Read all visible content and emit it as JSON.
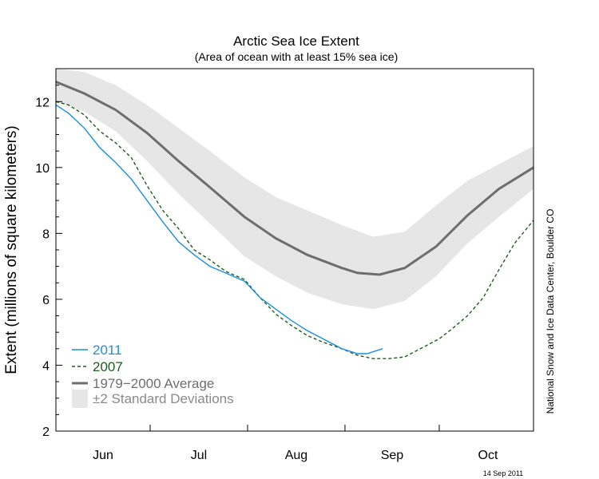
{
  "colors": {
    "series_2011": "#1a8fe0",
    "series_2007": "#1f5a1f",
    "average": "#6e6e6e",
    "std_band": "#e6e6e6",
    "legend_std_text": "#8a8a8a"
  },
  "chart_data": {
    "type": "line",
    "title": "Arctic Sea Ice Extent",
    "subtitle": "(Area of ocean with at least 15% sea ice)",
    "ylabel": "Extent (millions of square kilometers)",
    "xlabel": "",
    "ylim": [
      2,
      13
    ],
    "yticks": [
      2,
      4,
      6,
      8,
      10,
      12
    ],
    "xlim": [
      "Jun 1",
      "Oct 31"
    ],
    "x_month_labels": [
      "Jun",
      "Jul",
      "Aug",
      "Sep",
      "Oct"
    ],
    "x_month_boundaries": [
      "Jul 1",
      "Aug 1",
      "Sep 1",
      "Oct 1"
    ],
    "grid": false,
    "legend_position": "bottom-left",
    "series": [
      {
        "name": "2011",
        "style": "solid",
        "points": [
          [
            "Jun 1",
            11.9
          ],
          [
            "Jun 5",
            11.65
          ],
          [
            "Jun 10",
            11.2
          ],
          [
            "Jun 15",
            10.6
          ],
          [
            "Jun 20",
            10.15
          ],
          [
            "Jun 25",
            9.65
          ],
          [
            "Jun 30",
            9.0
          ],
          [
            "Jul 5",
            8.35
          ],
          [
            "Jul 10",
            7.75
          ],
          [
            "Jul 15",
            7.35
          ],
          [
            "Jul 20",
            7.0
          ],
          [
            "Jul 25",
            6.8
          ],
          [
            "Jul 31",
            6.55
          ],
          [
            "Aug 5",
            6.05
          ],
          [
            "Aug 10",
            5.7
          ],
          [
            "Aug 15",
            5.35
          ],
          [
            "Aug 20",
            5.05
          ],
          [
            "Aug 25",
            4.8
          ],
          [
            "Aug 31",
            4.5
          ],
          [
            "Sep 5",
            4.35
          ],
          [
            "Sep 8",
            4.35
          ],
          [
            "Sep 13",
            4.5
          ]
        ]
      },
      {
        "name": "2007",
        "style": "dashed",
        "points": [
          [
            "Jun 1",
            12.0
          ],
          [
            "Jun 5",
            11.9
          ],
          [
            "Jun 10",
            11.6
          ],
          [
            "Jun 15",
            11.1
          ],
          [
            "Jun 20",
            10.75
          ],
          [
            "Jun 25",
            10.3
          ],
          [
            "Jun 30",
            9.45
          ],
          [
            "Jul 5",
            8.7
          ],
          [
            "Jul 10",
            8.15
          ],
          [
            "Jul 15",
            7.5
          ],
          [
            "Jul 20",
            7.2
          ],
          [
            "Jul 25",
            6.85
          ],
          [
            "Jul 31",
            6.6
          ],
          [
            "Aug 5",
            6.05
          ],
          [
            "Aug 10",
            5.55
          ],
          [
            "Aug 15",
            5.2
          ],
          [
            "Aug 20",
            4.9
          ],
          [
            "Aug 25",
            4.7
          ],
          [
            "Aug 31",
            4.5
          ],
          [
            "Sep 5",
            4.3
          ],
          [
            "Sep 10",
            4.2
          ],
          [
            "Sep 15",
            4.2
          ],
          [
            "Sep 20",
            4.25
          ],
          [
            "Sep 25",
            4.5
          ],
          [
            "Oct 1",
            4.8
          ],
          [
            "Oct 5",
            5.1
          ],
          [
            "Oct 10",
            5.5
          ],
          [
            "Oct 15",
            6.05
          ],
          [
            "Oct 20",
            6.9
          ],
          [
            "Oct 25",
            7.7
          ],
          [
            "Oct 31",
            8.4
          ]
        ]
      },
      {
        "name": "1979−2000 Average",
        "style": "solid-thick",
        "points": [
          [
            "Jun 1",
            12.6
          ],
          [
            "Jun 10",
            12.25
          ],
          [
            "Jun 20",
            11.75
          ],
          [
            "Jun 30",
            11.05
          ],
          [
            "Jul 10",
            10.2
          ],
          [
            "Jul 20",
            9.4
          ],
          [
            "Jul 31",
            8.5
          ],
          [
            "Aug 10",
            7.85
          ],
          [
            "Aug 20",
            7.35
          ],
          [
            "Aug 31",
            6.95
          ],
          [
            "Sep 5",
            6.8
          ],
          [
            "Sep 12",
            6.75
          ],
          [
            "Sep 20",
            6.95
          ],
          [
            "Sep 30",
            7.6
          ],
          [
            "Oct 10",
            8.55
          ],
          [
            "Oct 20",
            9.35
          ],
          [
            "Oct 31",
            10.0
          ]
        ]
      }
    ],
    "std_band": {
      "name": "±2 Standard Deviations",
      "points": [
        [
          "Jun 1",
          12.0,
          13.0
        ],
        [
          "Jun 10",
          11.7,
          12.9
        ],
        [
          "Jun 20",
          11.1,
          12.5
        ],
        [
          "Jun 30",
          10.2,
          11.9
        ],
        [
          "Jul 10",
          9.2,
          11.2
        ],
        [
          "Jul 20",
          8.3,
          10.5
        ],
        [
          "Jul 31",
          7.3,
          9.7
        ],
        [
          "Aug 10",
          6.7,
          9.1
        ],
        [
          "Aug 20",
          6.2,
          8.7
        ],
        [
          "Aug 31",
          5.85,
          8.25
        ],
        [
          "Sep 10",
          5.7,
          7.9
        ],
        [
          "Sep 20",
          5.95,
          8.05
        ],
        [
          "Sep 30",
          6.7,
          8.85
        ],
        [
          "Oct 10",
          7.7,
          9.6
        ],
        [
          "Oct 20",
          8.5,
          10.1
        ],
        [
          "Oct 31",
          9.35,
          10.65
        ]
      ]
    },
    "legend": [
      "2011",
      "2007",
      "1979−2000 Average",
      "±2 Standard Deviations"
    ],
    "source_credit": "National Snow and Ice Data Center, Boulder CO",
    "date_stamp": "14 Sep 2011"
  }
}
